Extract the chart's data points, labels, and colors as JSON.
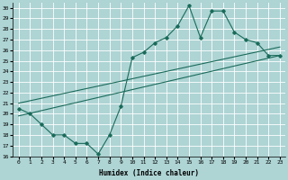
{
  "xlabel": "Humidex (Indice chaleur)",
  "xlim": [
    -0.5,
    23.5
  ],
  "ylim": [
    16,
    30.5
  ],
  "yticks": [
    16,
    17,
    18,
    19,
    20,
    21,
    22,
    23,
    24,
    25,
    26,
    27,
    28,
    29,
    30
  ],
  "xticks": [
    0,
    1,
    2,
    3,
    4,
    5,
    6,
    7,
    8,
    9,
    10,
    11,
    12,
    13,
    14,
    15,
    16,
    17,
    18,
    19,
    20,
    21,
    22,
    23
  ],
  "background_color": "#aed4d4",
  "grid_color": "#ffffff",
  "line_color": "#1a6b5a",
  "main_x": [
    0,
    1,
    2,
    3,
    4,
    5,
    6,
    7,
    8,
    9,
    10,
    11,
    12,
    13,
    14,
    15,
    16,
    17,
    18,
    19,
    20,
    21,
    22,
    23
  ],
  "main_y": [
    20.5,
    20.0,
    19.0,
    18.0,
    18.0,
    17.2,
    17.2,
    16.2,
    18.0,
    20.7,
    25.3,
    25.8,
    26.7,
    27.2,
    28.3,
    30.2,
    27.2,
    29.7,
    29.7,
    27.7,
    27.0,
    26.7,
    25.5,
    25.5
  ],
  "trend1_x": [
    0,
    23
  ],
  "trend1_y": [
    21.0,
    26.3
  ],
  "trend2_x": [
    0,
    23
  ],
  "trend2_y": [
    19.8,
    25.5
  ],
  "figsize": [
    3.2,
    2.0
  ],
  "dpi": 100
}
